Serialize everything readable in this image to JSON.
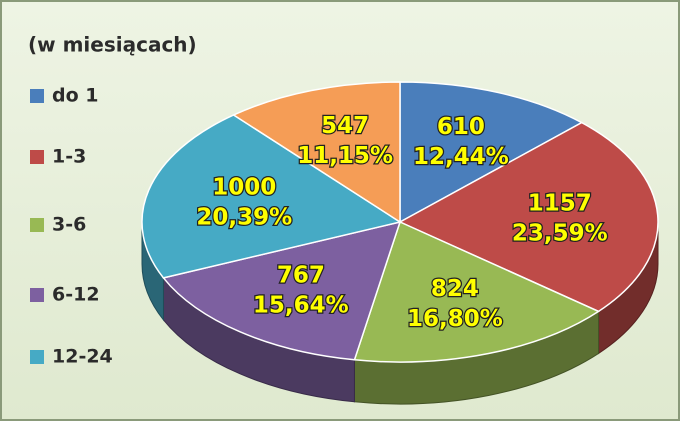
{
  "chart_data": {
    "type": "pie3d",
    "title": "(w miesiącach)",
    "categories": [
      "do 1",
      "1-3",
      "3-6",
      "6-12",
      "12-24",
      null
    ],
    "values": [
      610,
      1157,
      824,
      767,
      1000,
      547
    ],
    "percent_labels": [
      "12,44%",
      "23,59%",
      "16,80%",
      "15,64%",
      "20,39%",
      "11,15%"
    ],
    "colors": [
      "#4a7ebb",
      "#be4b48",
      "#98b954",
      "#7d60a0",
      "#46aac5",
      "#f59d56"
    ],
    "legend": "left"
  }
}
